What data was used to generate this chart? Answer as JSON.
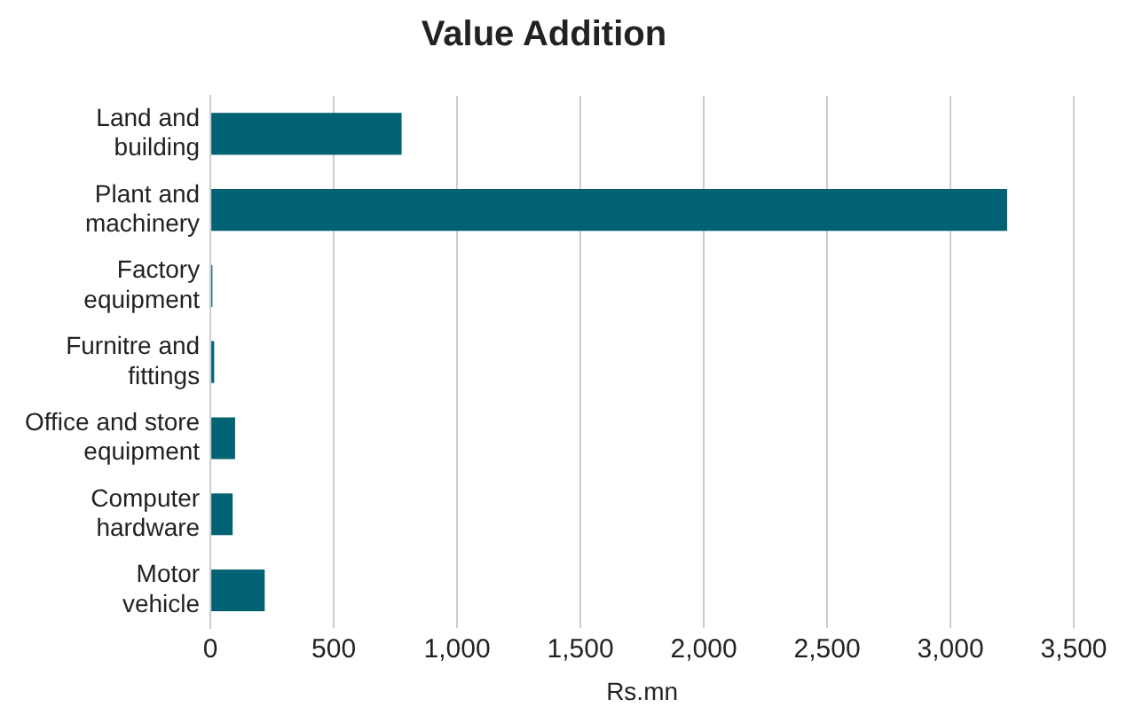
{
  "chart_data": {
    "type": "bar",
    "orientation": "horizontal",
    "title": "Value Addition",
    "xlabel": "Rs.mn",
    "categories": [
      "Land and building",
      "Plant and machinery",
      "Factory equipment",
      "Furnitre and fittings",
      "Office and store equipment",
      "Computer hardware",
      "Motor vehicle"
    ],
    "values": [
      775,
      3230,
      8,
      15,
      100,
      90,
      220
    ],
    "color": "#006272",
    "xlim": [
      0,
      3500
    ],
    "xticks": [
      0,
      500,
      {
        "value": 1000,
        "label": "1,000"
      },
      {
        "value": 1500,
        "label": "1,500"
      },
      {
        "value": 2000,
        "label": "2,000"
      },
      {
        "value": 2500,
        "label": "2,500"
      },
      {
        "value": 3000,
        "label": "3,000"
      },
      {
        "value": 3500,
        "label": "3,500"
      }
    ],
    "grid": "x",
    "legend": false
  }
}
